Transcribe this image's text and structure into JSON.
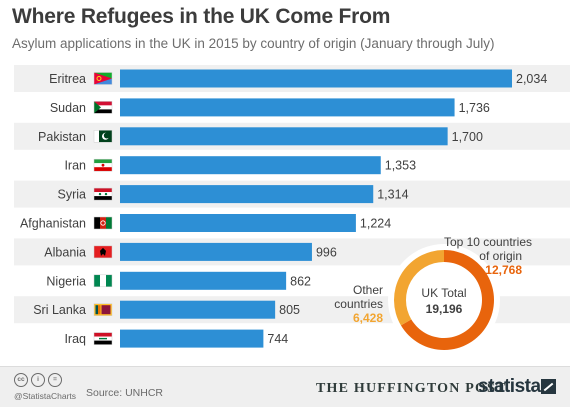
{
  "header": {
    "title": "Where Refugees in the UK Come From",
    "subtitle": "Asylum applications in the UK in 2015 by country of origin (January through July)"
  },
  "chart_data": [
    {
      "type": "bar",
      "orientation": "horizontal",
      "categories": [
        "Eritrea",
        "Sudan",
        "Pakistan",
        "Iran",
        "Syria",
        "Afghanistan",
        "Albania",
        "Nigeria",
        "Sri Lanka",
        "Iraq"
      ],
      "values": [
        2034,
        1736,
        1700,
        1353,
        1314,
        1224,
        996,
        862,
        805,
        744
      ],
      "value_labels": [
        "2,034",
        "1,736",
        "1,700",
        "1,353",
        "1,314",
        "1,224",
        "996",
        "862",
        "805",
        "744"
      ],
      "flag_icons": [
        "eritrea-flag-icon",
        "sudan-flag-icon",
        "pakistan-flag-icon",
        "iran-flag-icon",
        "syria-flag-icon",
        "afghanistan-flag-icon",
        "albania-flag-icon",
        "nigeria-flag-icon",
        "sri-lanka-flag-icon",
        "iraq-flag-icon"
      ],
      "bar_color": "#2d8fd5",
      "xlim": [
        0,
        2034
      ],
      "grid": false
    },
    {
      "type": "pie",
      "variant": "donut",
      "center_label": "UK Total",
      "center_value": "19,196",
      "slices": [
        {
          "label_lines": [
            "Top 10 countries",
            "of origin"
          ],
          "value": 12768,
          "value_label": "12,768",
          "color": "#e8640c"
        },
        {
          "label_lines": [
            "Other",
            "countries"
          ],
          "value": 6428,
          "value_label": "6,428",
          "color": "#f2a531"
        }
      ]
    }
  ],
  "footer": {
    "license_icons": [
      "cc-icon",
      "by-icon",
      "nd-icon"
    ],
    "license_glyphs": [
      "cc",
      "i",
      "="
    ],
    "handle": "@StatistaCharts",
    "source": "Source: UNHCR",
    "partner": "THE HUFFINGTON POST",
    "brand": "statista"
  }
}
